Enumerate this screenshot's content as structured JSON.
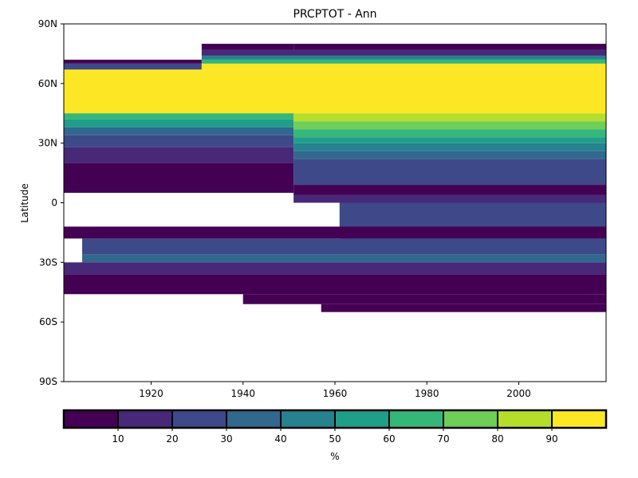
{
  "chart_data": {
    "type": "heatmap",
    "title": "PRCPTOT - Ann",
    "xlabel": "",
    "ylabel": "Latitude",
    "xlim": [
      1901,
      2019
    ],
    "ylim": [
      -90,
      90
    ],
    "x_ticks": [
      1920,
      1940,
      1960,
      1980,
      2000
    ],
    "y_ticks": [
      {
        "value": 90,
        "label": "90N"
      },
      {
        "value": 60,
        "label": "60N"
      },
      {
        "value": 30,
        "label": "30N"
      },
      {
        "value": 0,
        "label": "0"
      },
      {
        "value": -30,
        "label": "30S"
      },
      {
        "value": -60,
        "label": "60S"
      },
      {
        "value": -90,
        "label": "90S"
      }
    ],
    "colorbar": {
      "label": "%",
      "range": [
        0,
        100
      ],
      "ticks": [
        10,
        20,
        30,
        40,
        50,
        60,
        70,
        80,
        90
      ],
      "colors": [
        "#440154",
        "#482878",
        "#3e4989",
        "#31688e",
        "#26828e",
        "#1f9e89",
        "#35b779",
        "#6ece58",
        "#b5de2b",
        "#fde725"
      ]
    },
    "cells": [
      {
        "x": [
          1951,
          2019
        ],
        "y": [
          77,
          80
        ],
        "value": 5
      },
      {
        "x": [
          1931,
          1951
        ],
        "y": [
          77,
          80
        ],
        "value": 5
      },
      {
        "x": [
          1901,
          1931
        ],
        "y": [
          70,
          72
        ],
        "value": 5
      },
      {
        "x": [
          1931,
          2019
        ],
        "y": [
          74,
          77
        ],
        "value": 15
      },
      {
        "x": [
          1901,
          1931
        ],
        "y": [
          67,
          70
        ],
        "value": 25
      },
      {
        "x": [
          1931,
          2019
        ],
        "y": [
          72,
          74
        ],
        "value": 45
      },
      {
        "x": [
          1931,
          2019
        ],
        "y": [
          70,
          72
        ],
        "value": 65
      },
      {
        "x": [
          1901,
          2019
        ],
        "y": [
          45,
          67
        ],
        "value": 95
      },
      {
        "x": [
          1931,
          2019
        ],
        "y": [
          67,
          70
        ],
        "value": 95
      },
      {
        "x": [
          1901,
          1951
        ],
        "y": [
          42,
          45
        ],
        "value": 65
      },
      {
        "x": [
          1901,
          1951
        ],
        "y": [
          38,
          42
        ],
        "value": 55
      },
      {
        "x": [
          1901,
          1951
        ],
        "y": [
          34,
          38
        ],
        "value": 35
      },
      {
        "x": [
          1901,
          1951
        ],
        "y": [
          28,
          34
        ],
        "value": 25
      },
      {
        "x": [
          1901,
          1951
        ],
        "y": [
          20,
          28
        ],
        "value": 15
      },
      {
        "x": [
          1901,
          1951
        ],
        "y": [
          5,
          20
        ],
        "value": 5
      },
      {
        "x": [
          1951,
          2019
        ],
        "y": [
          41,
          45
        ],
        "value": 85
      },
      {
        "x": [
          1951,
          2019
        ],
        "y": [
          37,
          41
        ],
        "value": 75
      },
      {
        "x": [
          1951,
          2019
        ],
        "y": [
          33,
          37
        ],
        "value": 65
      },
      {
        "x": [
          1951,
          2019
        ],
        "y": [
          30,
          33
        ],
        "value": 55
      },
      {
        "x": [
          1951,
          2019
        ],
        "y": [
          26,
          30
        ],
        "value": 45
      },
      {
        "x": [
          1951,
          2019
        ],
        "y": [
          22,
          26
        ],
        "value": 35
      },
      {
        "x": [
          1951,
          2019
        ],
        "y": [
          9,
          22
        ],
        "value": 25
      },
      {
        "x": [
          1951,
          2019
        ],
        "y": [
          4,
          9
        ],
        "value": 5
      },
      {
        "x": [
          1951,
          2019
        ],
        "y": [
          0,
          4
        ],
        "value": 15
      },
      {
        "x": [
          1961,
          2019
        ],
        "y": [
          -18,
          0
        ],
        "value": 25
      },
      {
        "x": [
          1901,
          2019
        ],
        "y": [
          -12,
          -18
        ],
        "value": 5
      },
      {
        "x": [
          1905,
          2019
        ],
        "y": [
          -18,
          -26
        ],
        "value": 25
      },
      {
        "x": [
          1905,
          2019
        ],
        "y": [
          -26,
          -30
        ],
        "value": 35
      },
      {
        "x": [
          1901,
          2019
        ],
        "y": [
          -30,
          -36
        ],
        "value": 15
      },
      {
        "x": [
          1901,
          2019
        ],
        "y": [
          -36,
          -46
        ],
        "value": 5
      },
      {
        "x": [
          1940,
          2019
        ],
        "y": [
          -46,
          -51
        ],
        "value": 5
      },
      {
        "x": [
          1957,
          2019
        ],
        "y": [
          -51,
          -55
        ],
        "value": 5
      }
    ]
  }
}
